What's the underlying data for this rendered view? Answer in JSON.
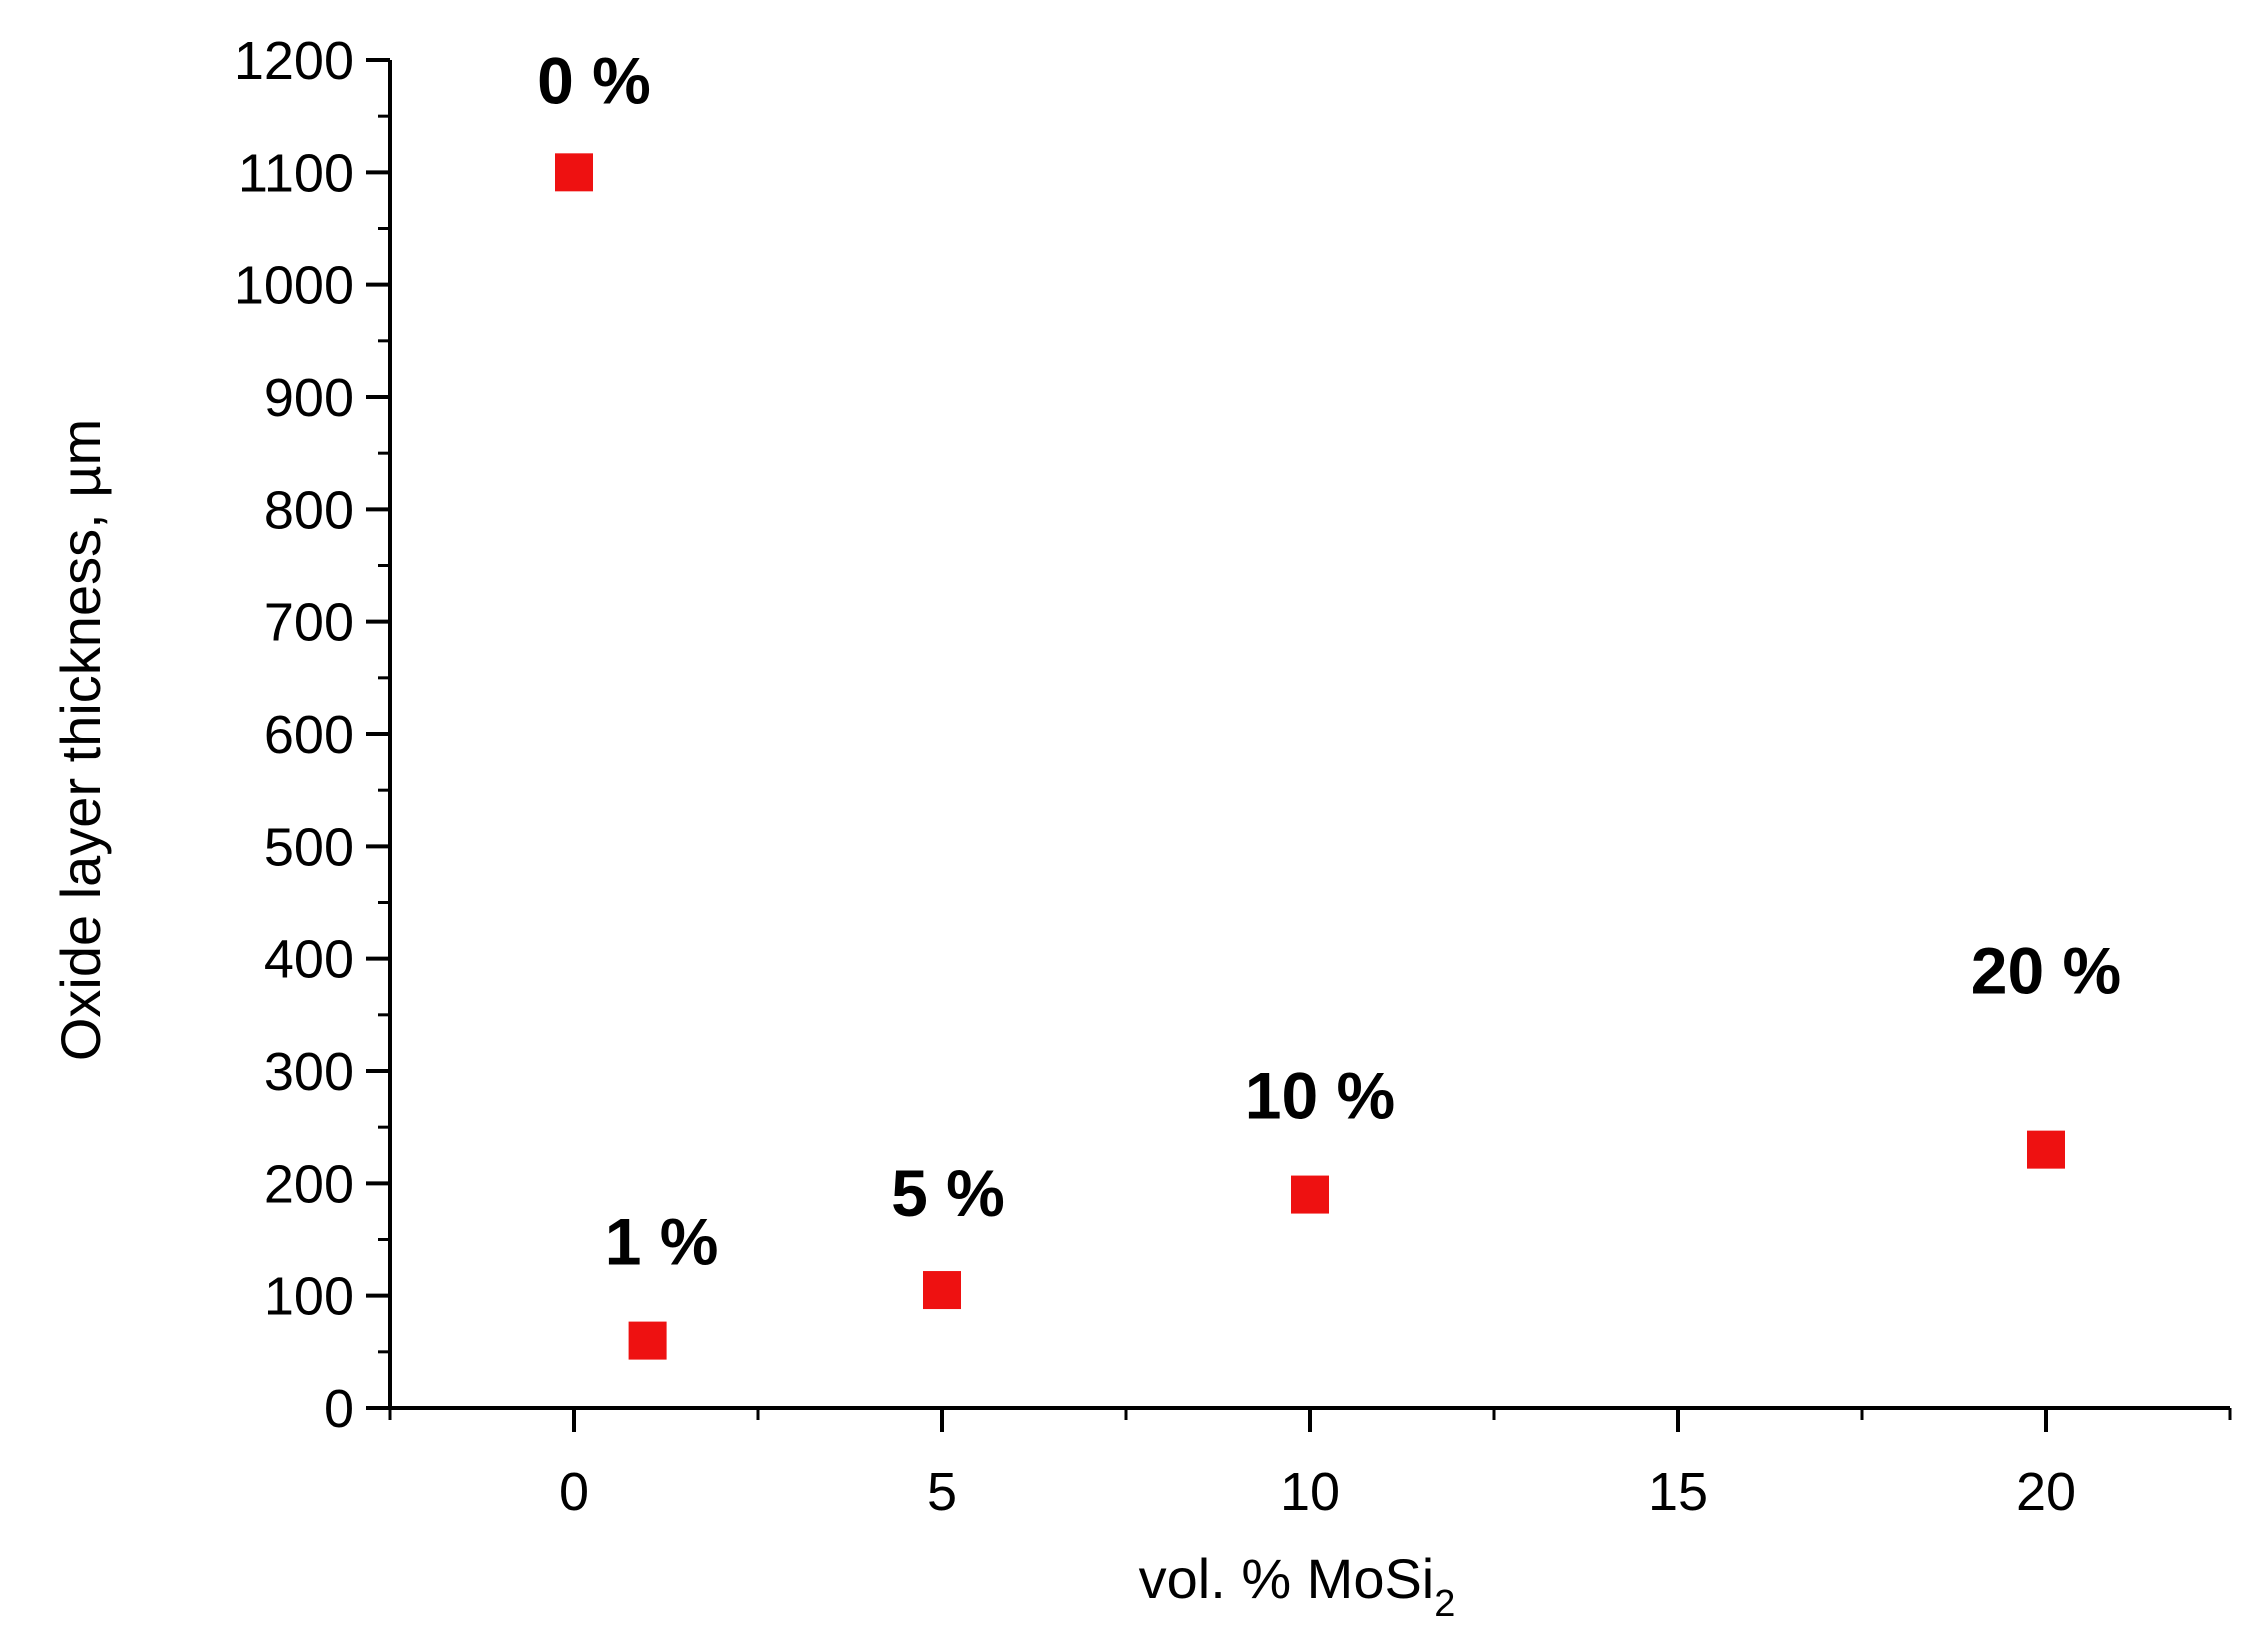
{
  "chart_data": {
    "type": "scatter",
    "title": "",
    "xlabel": "vol. % MoSi",
    "xlabel_subscript": "2",
    "ylabel": "Oxide layer thickness, µm",
    "xlim": [
      -2.5,
      22.5
    ],
    "ylim": [
      0,
      1200
    ],
    "x_ticks": [
      0,
      5,
      10,
      15,
      20
    ],
    "y_ticks": [
      0,
      100,
      200,
      300,
      400,
      500,
      600,
      700,
      800,
      900,
      1000,
      1100,
      1200
    ],
    "grid": false,
    "marker": "square",
    "marker_color": "#ee1111",
    "points": [
      {
        "x": 0,
        "y": 1100,
        "label": "0 %"
      },
      {
        "x": 1,
        "y": 60,
        "label": "1 %"
      },
      {
        "x": 5,
        "y": 105,
        "label": "5 %"
      },
      {
        "x": 10,
        "y": 190,
        "label": "10 %"
      },
      {
        "x": 20,
        "y": 230,
        "label": "20 %"
      }
    ]
  }
}
